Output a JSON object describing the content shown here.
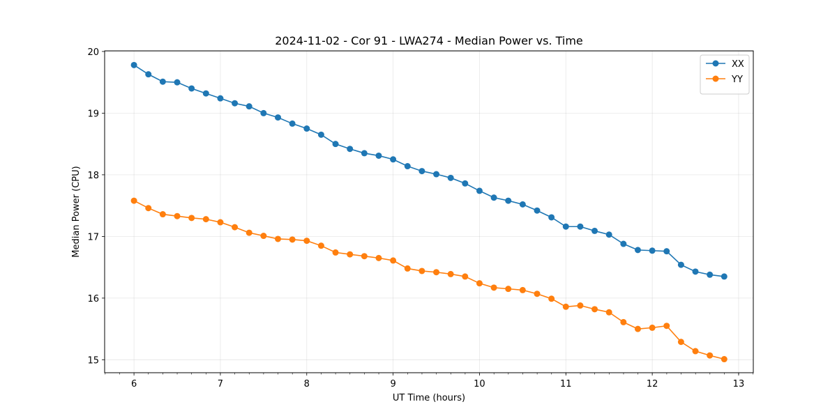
{
  "chart_data": {
    "type": "line",
    "title": "2024-11-02 - Cor 91 - LWA274 - Median Power vs. Time",
    "xlabel": "UT Time (hours)",
    "ylabel": "Median Power (CPU)",
    "xlim": [
      5.66,
      13.17
    ],
    "ylim": [
      14.79,
      20.01
    ],
    "xticks": [
      6,
      7,
      8,
      9,
      10,
      11,
      12,
      13
    ],
    "yticks": [
      15,
      16,
      17,
      18,
      19,
      20
    ],
    "xminor_step": 0.1667,
    "grid": true,
    "legend_position": "top-right",
    "x": [
      6.0,
      6.1667,
      6.3333,
      6.5,
      6.6667,
      6.8333,
      7.0,
      7.1667,
      7.3333,
      7.5,
      7.6667,
      7.8333,
      8.0,
      8.1667,
      8.3333,
      8.5,
      8.6667,
      8.8333,
      9.0,
      9.1667,
      9.3333,
      9.5,
      9.6667,
      9.8333,
      10.0,
      10.1667,
      10.3333,
      10.5,
      10.6667,
      10.8333,
      11.0,
      11.1667,
      11.3333,
      11.5,
      11.6667,
      11.8333,
      12.0,
      12.1667,
      12.3333,
      12.5,
      12.6667,
      12.8333
    ],
    "series": [
      {
        "name": "XX",
        "color": "#1f77b4",
        "values": [
          19.78,
          19.63,
          19.51,
          19.5,
          19.4,
          19.32,
          19.24,
          19.16,
          19.11,
          19.0,
          18.93,
          18.83,
          18.75,
          18.65,
          18.5,
          18.42,
          18.35,
          18.31,
          18.25,
          18.14,
          18.06,
          18.01,
          17.95,
          17.86,
          17.74,
          17.63,
          17.58,
          17.52,
          17.42,
          17.31,
          17.16,
          17.16,
          17.09,
          17.03,
          16.88,
          16.78,
          16.77,
          16.76,
          16.54,
          16.43,
          16.38,
          16.35
        ]
      },
      {
        "name": "YY",
        "color": "#ff7f0e",
        "values": [
          17.58,
          17.46,
          17.36,
          17.33,
          17.3,
          17.28,
          17.23,
          17.15,
          17.06,
          17.01,
          16.96,
          16.95,
          16.93,
          16.85,
          16.74,
          16.71,
          16.68,
          16.65,
          16.61,
          16.48,
          16.44,
          16.42,
          16.39,
          16.35,
          16.24,
          16.17,
          16.15,
          16.13,
          16.07,
          15.99,
          15.86,
          15.88,
          15.82,
          15.77,
          15.61,
          15.5,
          15.52,
          15.55,
          15.29,
          15.14,
          15.07,
          15.01
        ]
      }
    ]
  }
}
